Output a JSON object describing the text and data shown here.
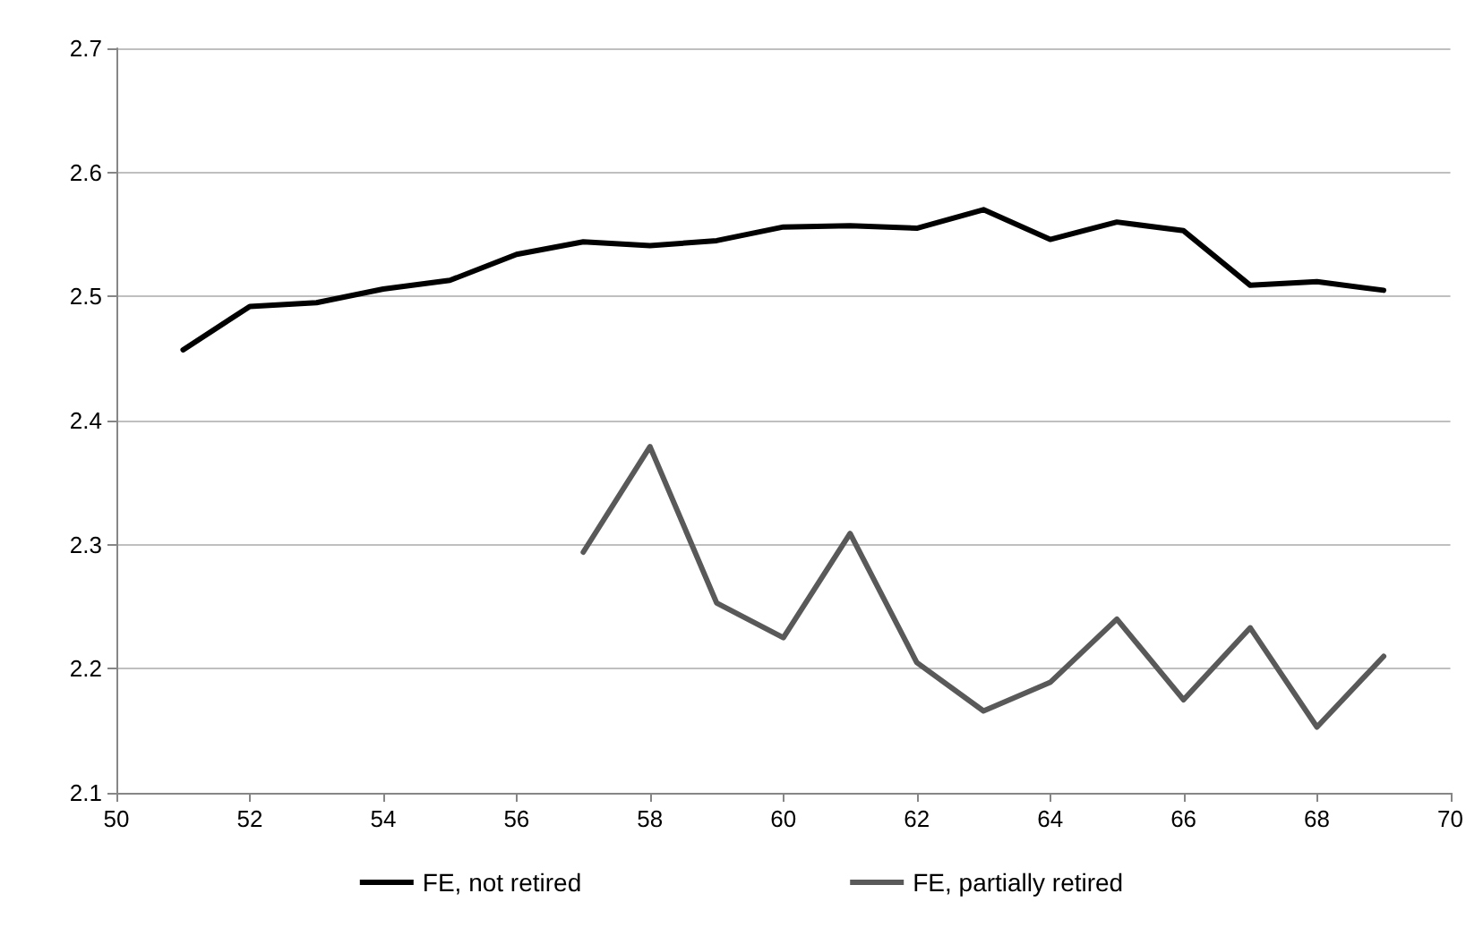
{
  "chart_data": {
    "type": "line",
    "x": [
      51,
      52,
      53,
      54,
      55,
      56,
      57,
      58,
      59,
      60,
      61,
      62,
      63,
      64,
      65,
      66,
      67,
      68,
      69
    ],
    "series": [
      {
        "name": "FE, not retired",
        "color": "#000000",
        "values": [
          2.457,
          2.492,
          2.495,
          2.506,
          2.513,
          2.534,
          2.544,
          2.541,
          2.545,
          2.556,
          2.557,
          2.555,
          2.57,
          2.546,
          2.56,
          2.553,
          2.509,
          2.512,
          2.505
        ]
      },
      {
        "name": "FE, partially retired",
        "color": "#595959",
        "values": [
          null,
          null,
          null,
          null,
          null,
          null,
          2.294,
          2.379,
          2.253,
          2.225,
          2.309,
          2.205,
          2.166,
          2.189,
          2.24,
          2.175,
          2.233,
          2.153,
          2.21
        ]
      }
    ],
    "xlim": [
      50,
      70
    ],
    "xticks": [
      50,
      52,
      54,
      56,
      58,
      60,
      62,
      64,
      66,
      68,
      70
    ],
    "ylim": [
      2.1,
      2.7
    ],
    "yticks": [
      2.1,
      2.2,
      2.3,
      2.4,
      2.5,
      2.6,
      2.7
    ],
    "grid": "y",
    "legend": "bottom",
    "marker": "none",
    "line_style": "solid"
  }
}
